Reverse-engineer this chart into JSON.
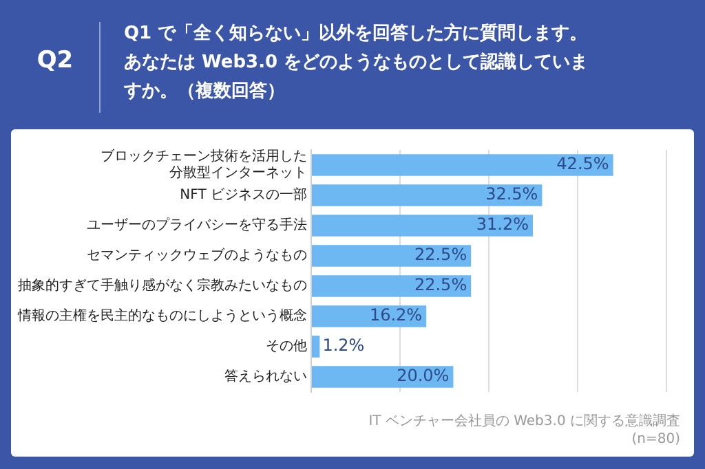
{
  "chart_data": {
    "type": "bar",
    "orientation": "horizontal",
    "title": "Q1 で「全く知らない」以外を回答した方に質問します。あなたは Web3.0 をどのようなものとして認識していますか。（複数回答）",
    "annotations": [
      "Q2",
      "IT ベンチャー会社員の Web3.0 に関する意識調査",
      "(n=80)"
    ],
    "categories": [
      "ブロックチェーン技術を活用した分散型インターネット",
      "NFT ビジネスの一部",
      "ユーザーのプライバシーを守る手法",
      "セマンティックウェブのようなもの",
      "抽象的すぎて手触り感がなく宗教みたいなもの",
      "情報の主権を民主的なものにしようという概念",
      "その他",
      "答えられない"
    ],
    "values": [
      42.5,
      32.5,
      31.2,
      22.5,
      22.5,
      16.2,
      1.2,
      20.0
    ],
    "value_labels": [
      "42.5%",
      "32.5%",
      "31.2%",
      "22.5%",
      "22.5%",
      "16.2%",
      "1.2%",
      "20.0%"
    ],
    "color": "#6db8f2",
    "xlim": [
      0,
      50
    ],
    "xticks": [
      0,
      12.5,
      25,
      37.5,
      50
    ],
    "tick_labels": "y",
    "grid": "x",
    "legend": false
  }
}
